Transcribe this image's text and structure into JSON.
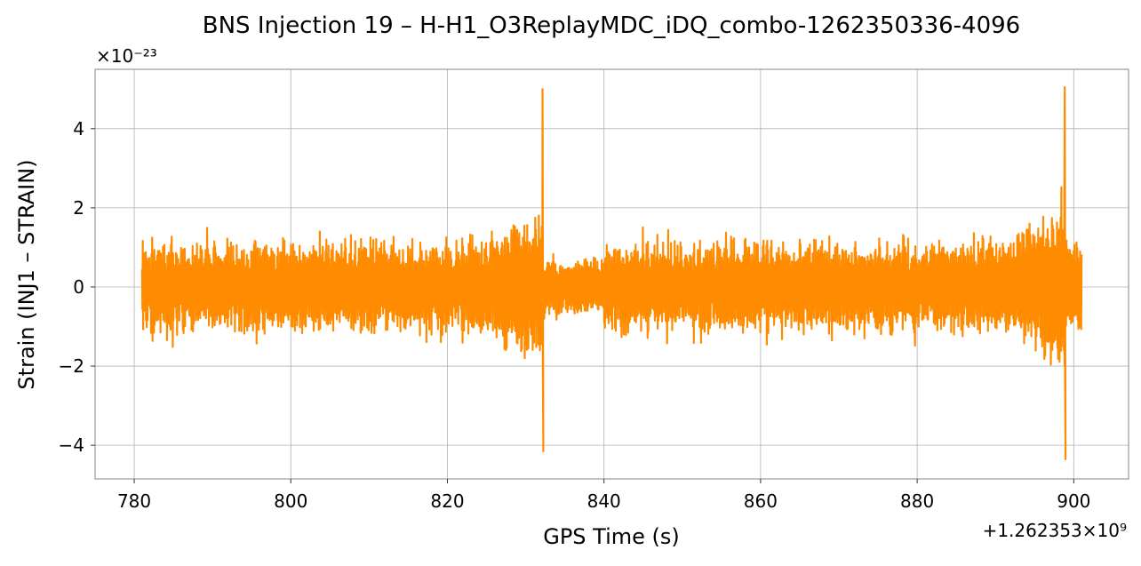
{
  "chart_data": {
    "type": "line",
    "title": "BNS Injection 19 – H-H1_O3ReplayMDC_iDQ_combo-1262350336-4096",
    "xlabel": "GPS Time (s)",
    "ylabel": "Strain (INJ1 – STRAIN)",
    "x_offset_label": "+1.262353×10⁹",
    "y_scale_label": "×10⁻²³",
    "xlim": [
      775,
      907
    ],
    "ylim": [
      -4.85,
      5.5
    ],
    "x_ticks": [
      780,
      800,
      820,
      840,
      860,
      880,
      900
    ],
    "x_tick_labels": [
      "780",
      "800",
      "820",
      "840",
      "860",
      "880",
      "900"
    ],
    "y_ticks": [
      -4,
      -2,
      0,
      2,
      4
    ],
    "y_tick_labels": [
      "−4",
      "−2",
      "0",
      "2",
      "4"
    ],
    "grid": true,
    "legend": "none",
    "color": "#ff8c00",
    "series": [
      {
        "x_start": 781,
        "x_end": 901,
        "baseline_amplitude": 1.3,
        "bursts": [
          {
            "x": 832.2,
            "y_max": 5.0,
            "y_min": -4.15
          },
          {
            "x": 898.9,
            "y_max": 5.05,
            "y_min": -4.35
          }
        ]
      }
    ]
  }
}
